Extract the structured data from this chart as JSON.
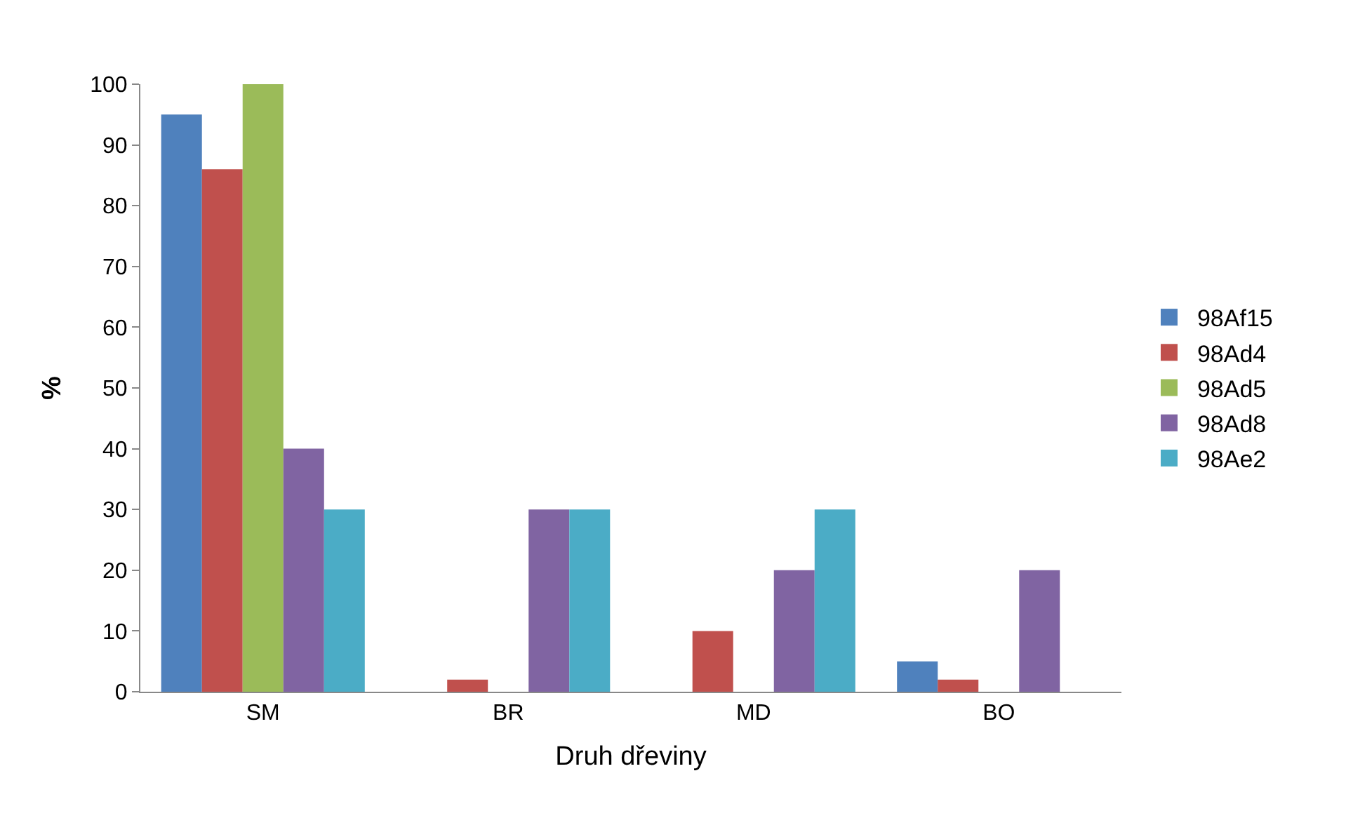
{
  "chart_data": {
    "type": "bar",
    "xlabel": "Druh dřeviny",
    "ylabel": "%",
    "categories": [
      "SM",
      "BR",
      "MD",
      "BO"
    ],
    "series": [
      {
        "name": "98Af15",
        "color": "#4f81bd",
        "values": [
          95,
          null,
          null,
          5
        ]
      },
      {
        "name": "98Ad4",
        "color": "#c0504d",
        "values": [
          86,
          2,
          10,
          2
        ]
      },
      {
        "name": "98Ad5",
        "color": "#9bbb59",
        "values": [
          100,
          null,
          null,
          null
        ]
      },
      {
        "name": "98Ad8",
        "color": "#8064a2",
        "values": [
          40,
          30,
          20,
          20
        ]
      },
      {
        "name": "98Ae2",
        "color": "#4bacc6",
        "values": [
          30,
          30,
          30,
          null
        ]
      }
    ],
    "ylim": [
      0,
      100
    ],
    "yticks": [
      0,
      10,
      20,
      30,
      40,
      50,
      60,
      70,
      80,
      90,
      100
    ],
    "legend": "right"
  }
}
